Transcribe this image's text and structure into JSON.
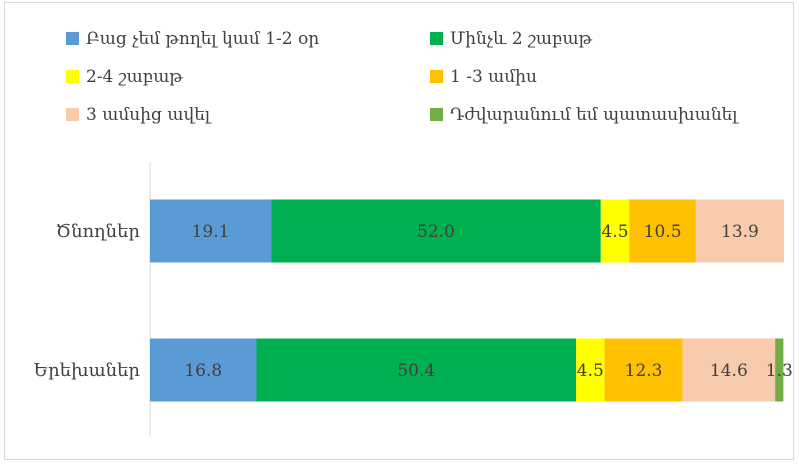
{
  "chart_data": {
    "type": "bar",
    "orientation": "horizontal",
    "stacked": true,
    "categories": [
      "Ծնողներ",
      "Երեխաներ"
    ],
    "series": [
      {
        "name": "Բաց չեմ թողել կամ 1-2 օր",
        "color": "#5b9bd5",
        "values": [
          19.1,
          16.8
        ],
        "labels": [
          "19.1",
          "16.8"
        ]
      },
      {
        "name": "Մինչև 2 շաբաթ",
        "color": "#00b050",
        "values": [
          52.0,
          50.4
        ],
        "labels": [
          "52.0",
          "50.4"
        ]
      },
      {
        "name": "2-4 շաբաթ",
        "color": "#ffff00",
        "values": [
          4.5,
          4.5
        ],
        "labels": [
          "4.5",
          "4.5"
        ]
      },
      {
        "name": "1 -3 ամիս",
        "color": "#ffc000",
        "values": [
          10.5,
          12.3
        ],
        "labels": [
          "10.5",
          "12.3"
        ]
      },
      {
        "name": "3 ամսից ավել",
        "color": "#f8cbad",
        "values": [
          13.9,
          14.6
        ],
        "labels": [
          "13.9",
          "14.6"
        ]
      },
      {
        "name": "Դժվարանում եմ պատասխանել",
        "color": "#70ad47",
        "values": [
          0,
          1.3
        ],
        "labels": [
          "",
          "1.3"
        ]
      }
    ],
    "xlim": [
      0,
      100
    ],
    "legend": "top",
    "grid": false
  }
}
